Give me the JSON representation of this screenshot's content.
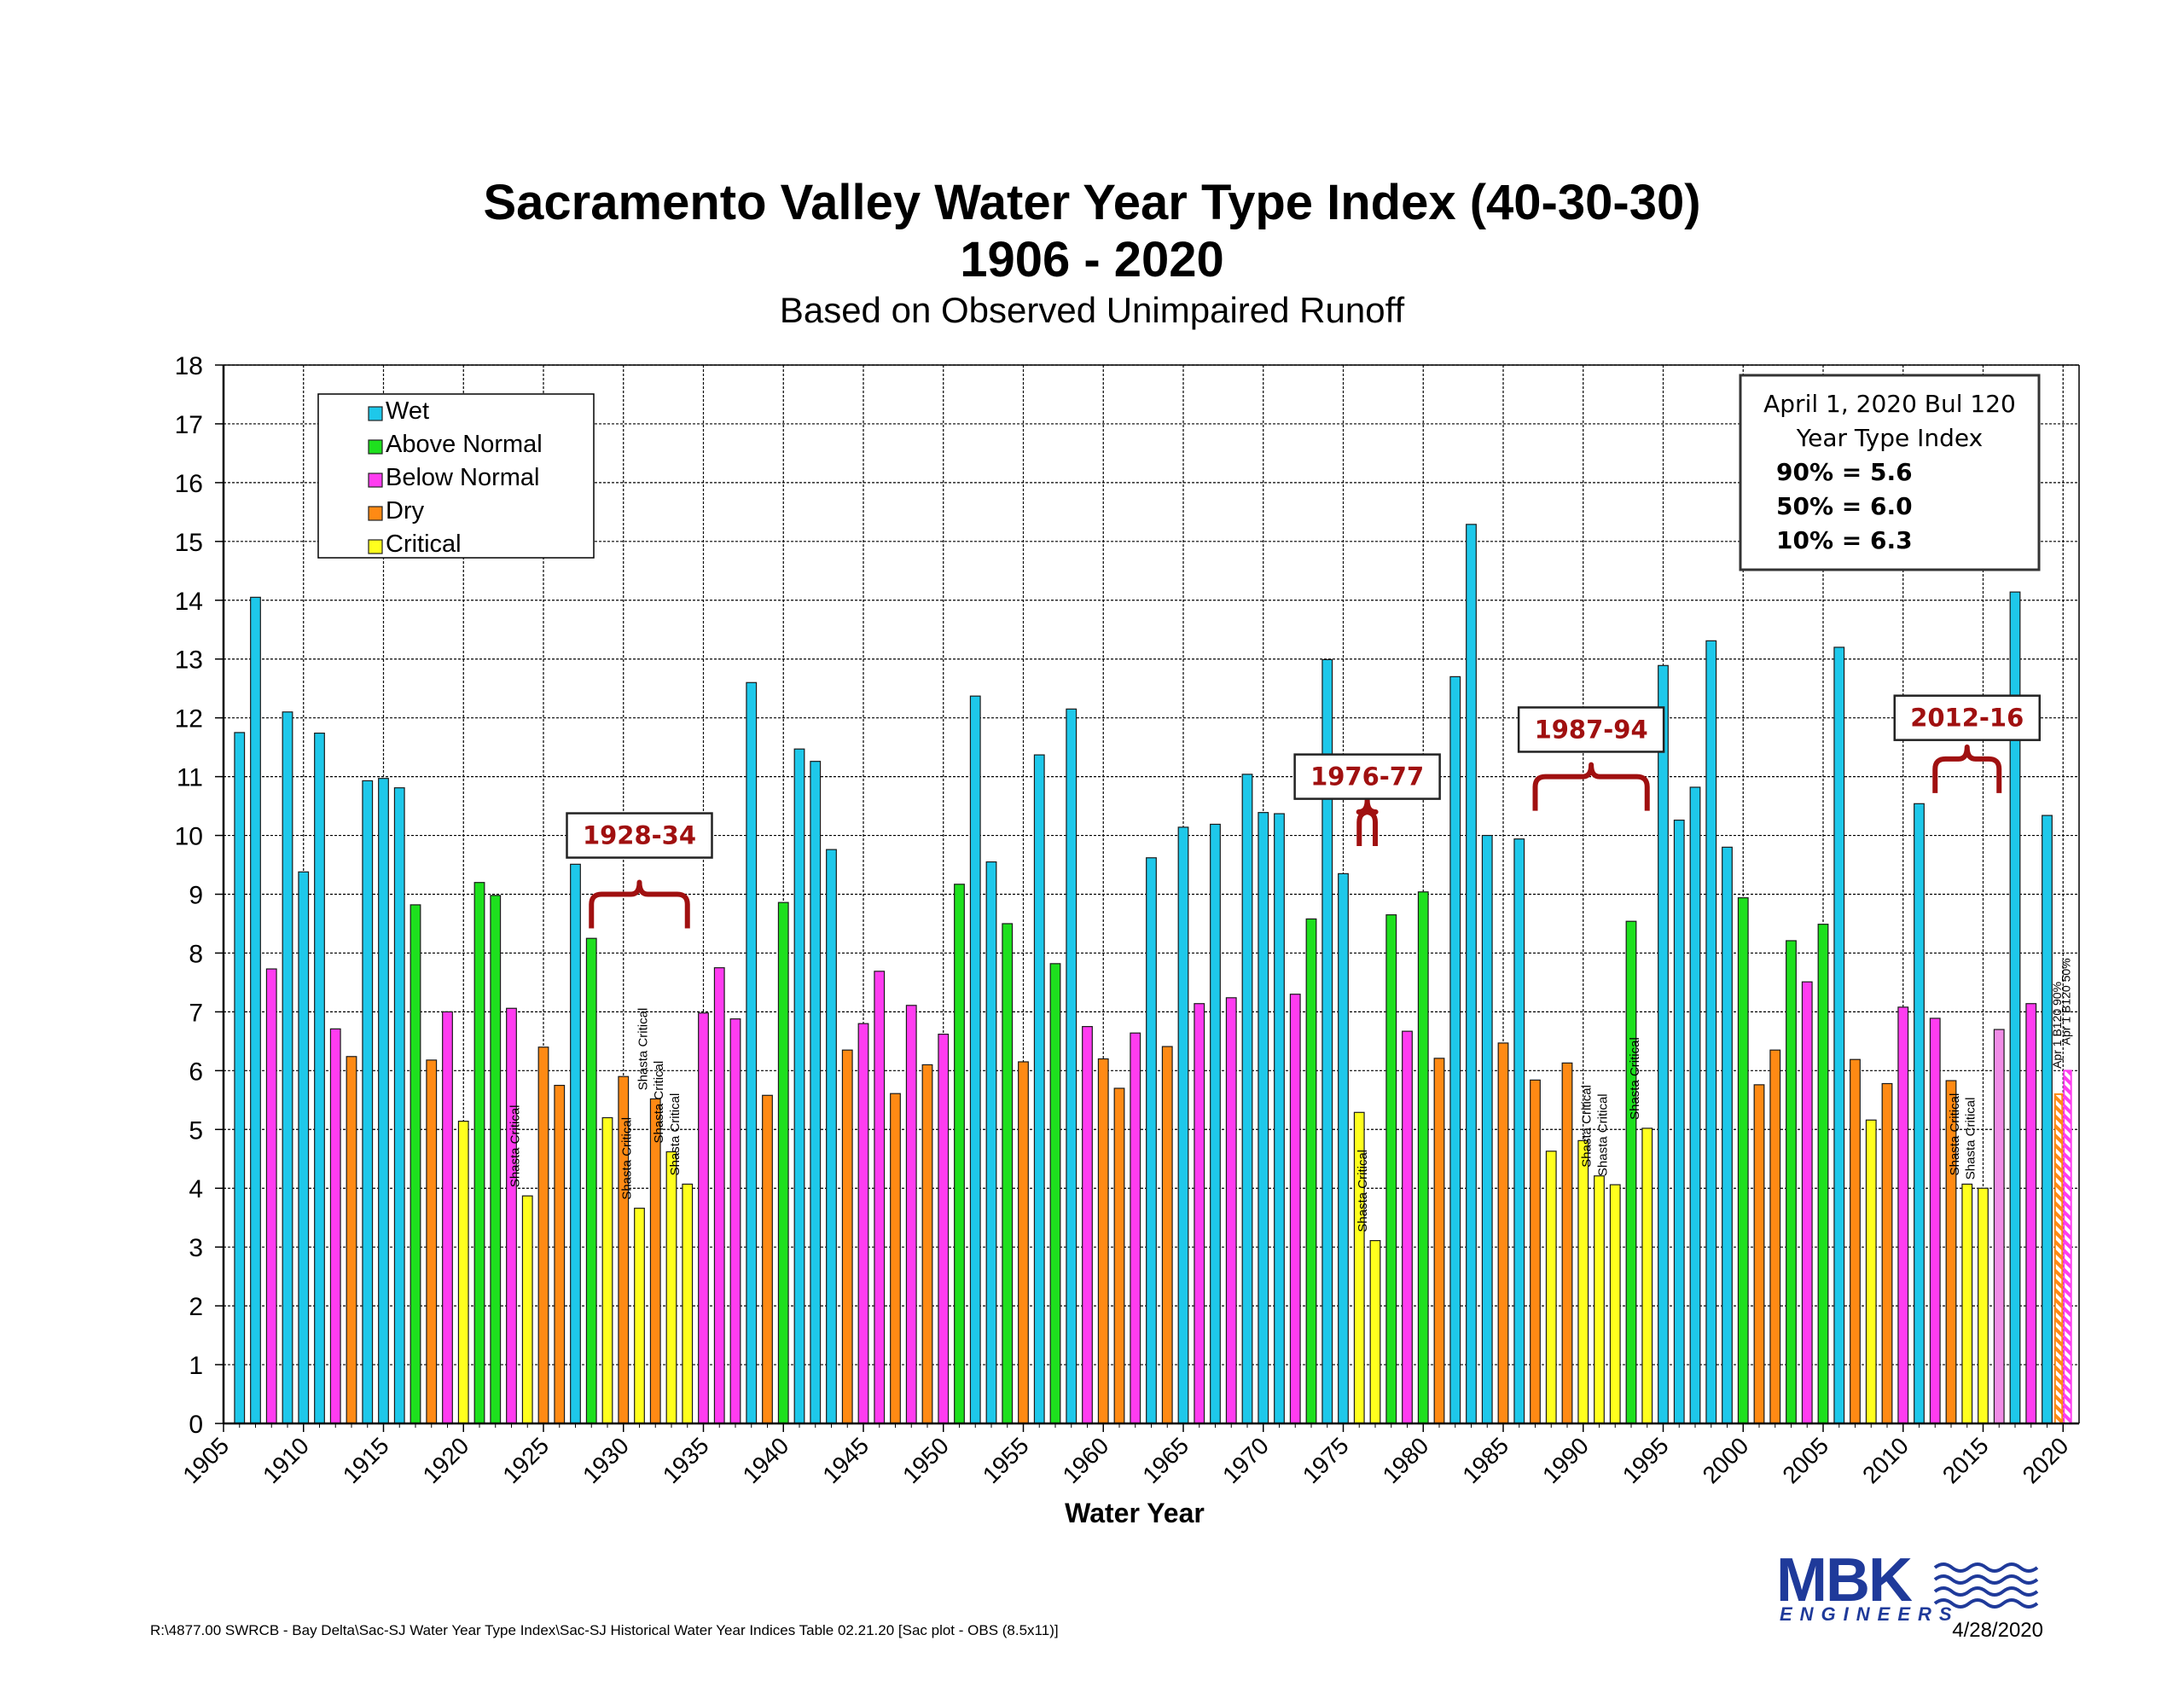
{
  "chart_data": {
    "type": "bar",
    "title": "Sacramento Valley Water Year Type Index (40-30-30)",
    "title_line2": "1906 - 2020",
    "subtitle": "Based on Observed Unimpaired Runoff",
    "xlabel": "Water Year",
    "ylabel": "",
    "ylim": [
      0,
      18
    ],
    "xlim": [
      1905,
      2020
    ],
    "yticks": [
      "0",
      "1",
      "2",
      "3",
      "4",
      "5",
      "6",
      "7",
      "8",
      "9",
      "10",
      "11",
      "12",
      "13",
      "14",
      "15",
      "16",
      "17",
      "18"
    ],
    "xticks": [
      "1905",
      "1910",
      "1915",
      "1920",
      "1925",
      "1930",
      "1935",
      "1940",
      "1945",
      "1950",
      "1955",
      "1960",
      "1965",
      "1970",
      "1975",
      "1980",
      "1985",
      "1990",
      "1995",
      "2000",
      "2005",
      "2010",
      "2015",
      "2020"
    ],
    "grid": true,
    "legend_position": "top-left",
    "legend": [
      {
        "label": "Wet",
        "type": "W"
      },
      {
        "label": "Above Normal",
        "type": "AN"
      },
      {
        "label": "Below Normal",
        "type": "BN"
      },
      {
        "label": "Dry",
        "type": "D"
      },
      {
        "label": "Critical",
        "type": "C"
      }
    ],
    "colors": {
      "W": "#1ec8ea",
      "AN": "#1ee01e",
      "BN": "#ff3cf0",
      "D": "#ff8a14",
      "C": "#ffff1e",
      "BN_light": "#f08ce6",
      "bracket": "#a01010"
    },
    "years": [
      1906,
      1907,
      1908,
      1909,
      1910,
      1911,
      1912,
      1913,
      1914,
      1915,
      1916,
      1917,
      1918,
      1919,
      1920,
      1921,
      1922,
      1923,
      1924,
      1925,
      1926,
      1927,
      1928,
      1929,
      1930,
      1931,
      1932,
      1933,
      1934,
      1935,
      1936,
      1937,
      1938,
      1939,
      1940,
      1941,
      1942,
      1943,
      1944,
      1945,
      1946,
      1947,
      1948,
      1949,
      1950,
      1951,
      1952,
      1953,
      1954,
      1955,
      1956,
      1957,
      1958,
      1959,
      1960,
      1961,
      1962,
      1963,
      1964,
      1965,
      1966,
      1967,
      1968,
      1969,
      1970,
      1971,
      1972,
      1973,
      1974,
      1975,
      1976,
      1977,
      1978,
      1979,
      1980,
      1981,
      1982,
      1983,
      1984,
      1985,
      1986,
      1987,
      1988,
      1989,
      1990,
      1991,
      1992,
      1993,
      1994,
      1995,
      1996,
      1997,
      1998,
      1999,
      2000,
      2001,
      2002,
      2003,
      2004,
      2005,
      2006,
      2007,
      2008,
      2009,
      2010,
      2011,
      2012,
      2013,
      2014,
      2015,
      2016,
      2017,
      2018,
      2019
    ],
    "values": [
      11.75,
      14.05,
      7.73,
      12.1,
      9.38,
      11.74,
      6.71,
      6.24,
      10.93,
      10.97,
      10.81,
      8.82,
      6.18,
      7.0,
      5.14,
      9.2,
      8.98,
      7.06,
      3.87,
      6.4,
      5.75,
      9.51,
      8.25,
      5.2,
      5.9,
      3.66,
      5.52,
      4.62,
      4.07,
      6.98,
      7.75,
      6.88,
      12.6,
      5.58,
      8.86,
      11.47,
      11.26,
      9.76,
      6.35,
      6.8,
      7.69,
      5.61,
      7.11,
      6.1,
      6.62,
      9.17,
      12.37,
      9.55,
      8.5,
      6.15,
      11.37,
      7.82,
      12.15,
      6.75,
      6.2,
      5.7,
      6.64,
      9.62,
      6.41,
      10.14,
      7.14,
      10.19,
      7.24,
      11.04,
      10.39,
      10.37,
      7.3,
      8.58,
      12.99,
      9.35,
      5.29,
      3.11,
      8.65,
      6.67,
      9.04,
      6.21,
      12.7,
      15.29,
      10.0,
      6.47,
      9.94,
      5.84,
      4.63,
      6.13,
      4.81,
      4.21,
      4.06,
      8.54,
      5.02,
      12.89,
      10.26,
      10.82,
      13.31,
      9.8,
      8.94,
      5.76,
      6.35,
      8.21,
      7.51,
      8.49,
      13.2,
      6.19,
      5.16,
      5.78,
      7.08,
      10.54,
      6.89,
      5.83,
      4.07,
      4.0,
      6.7,
      14.14,
      7.14,
      10.34
    ],
    "types": [
      "W",
      "W",
      "BN",
      "W",
      "W",
      "W",
      "BN",
      "D",
      "W",
      "W",
      "W",
      "AN",
      "D",
      "BN",
      "C",
      "AN",
      "AN",
      "BN",
      "C",
      "D",
      "D",
      "W",
      "AN",
      "C",
      "D",
      "C",
      "D",
      "C",
      "C",
      "BN",
      "BN",
      "BN",
      "W",
      "D",
      "AN",
      "W",
      "W",
      "W",
      "D",
      "BN",
      "BN",
      "D",
      "BN",
      "D",
      "BN",
      "AN",
      "W",
      "W",
      "AN",
      "D",
      "W",
      "AN",
      "W",
      "BN",
      "D",
      "D",
      "BN",
      "W",
      "D",
      "W",
      "BN",
      "W",
      "BN",
      "W",
      "W",
      "W",
      "BN",
      "AN",
      "W",
      "W",
      "C",
      "C",
      "AN",
      "BN",
      "AN",
      "D",
      "W",
      "W",
      "W",
      "D",
      "W",
      "D",
      "C",
      "D",
      "C",
      "C",
      "C",
      "AN",
      "C",
      "W",
      "W",
      "W",
      "W",
      "W",
      "AN",
      "D",
      "D",
      "AN",
      "BN",
      "AN",
      "W",
      "D",
      "C",
      "D",
      "BN",
      "W",
      "BN",
      "D",
      "C",
      "C",
      "BN",
      "W",
      "BN",
      "W"
    ],
    "forecast_2020": [
      {
        "label": "Apr 1 B120 90%",
        "value": 5.6,
        "type": "D"
      },
      {
        "label": "Apr 1 B120 50%",
        "value": 6.0,
        "type": "BN"
      }
    ],
    "annotations": [
      {
        "label": "Shasta Critical",
        "year": 1924
      },
      {
        "label": "Shasta Critical",
        "year": 1931
      },
      {
        "label": "Shasta Critical",
        "year": 1932
      },
      {
        "label": "Shasta Critical",
        "year": 1933
      },
      {
        "label": "Shasta Critical",
        "year": 1934
      },
      {
        "label": "Shasta Critical",
        "year": 1977
      },
      {
        "label": "Shasta Critical",
        "year": 1991
      },
      {
        "label": "Shasta Critical",
        "year": 1992
      },
      {
        "label": "Shasta Critical",
        "year": 1994
      },
      {
        "label": "Shasta Critical",
        "year": 2014
      },
      {
        "label": "Shasta Critical",
        "year": 2015
      }
    ],
    "drought_periods": [
      {
        "label": "1928-34",
        "start": 1928,
        "end": 1934,
        "bracket_y": 9.0,
        "box_y": 10.0
      },
      {
        "label": "1976-77",
        "start": 1976,
        "end": 1977,
        "bracket_y": 10.4,
        "box_y": 11.0
      },
      {
        "label": "1987-94",
        "start": 1987,
        "end": 1994,
        "bracket_y": 11.0,
        "box_y": 11.8
      },
      {
        "label": "2012-16",
        "start": 2012,
        "end": 2016,
        "bracket_y": 11.3,
        "box_y": 12.0
      }
    ]
  },
  "info_box": {
    "line1": "April 1, 2020 Bul 120",
    "line2": "Year Type Index",
    "line3": "90% = 5.6",
    "line4": "50% = 6.0",
    "line5": "10% = 6.3"
  },
  "footer": {
    "path": "R:\\4877.00   SWRCB - Bay Delta\\Sac-SJ Water Year Type Index\\Sac-SJ Historical Water Year Indices Table 02.21.20  [Sac plot - OBS (8.5x11)]",
    "date": "4/28/2020"
  },
  "logo": {
    "name": "MBK",
    "sub": "ENGINEERS"
  }
}
